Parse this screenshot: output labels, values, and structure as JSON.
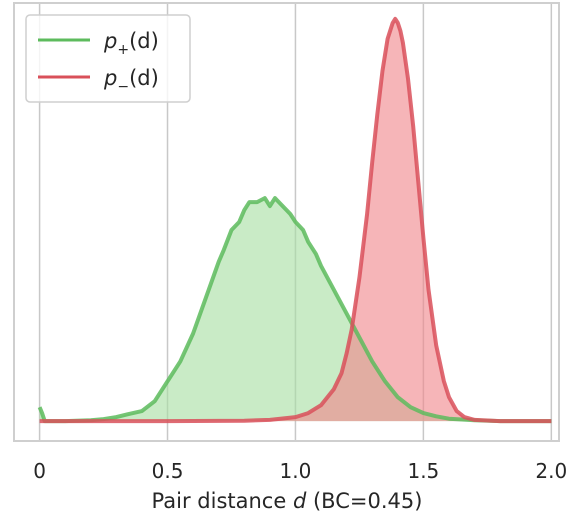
{
  "chart_data": {
    "type": "area",
    "xlim": [
      -0.1,
      2.03
    ],
    "ylim": [
      -0.05,
      1.05
    ],
    "xticks": [
      0,
      0.5,
      1.0,
      1.5,
      2.0
    ],
    "xtick_labels": [
      "0",
      "0.5",
      "1.0",
      "1.5",
      "2.0"
    ],
    "xlabel": "Pair distance",
    "xlabel_var": "d",
    "xlabel_suffix": " (BC=0.45)",
    "grid": "vertical",
    "legend_position": "top-left",
    "series": [
      {
        "name": "p+(d)",
        "label_base": "p",
        "label_sub": "+",
        "label_arg": "(d)",
        "line_color": "#5dbb5d",
        "fill_color": "#a8dfa3",
        "x": [
          0.0,
          0.01,
          0.02,
          0.1,
          0.2,
          0.25,
          0.3,
          0.35,
          0.4,
          0.45,
          0.5,
          0.55,
          0.6,
          0.65,
          0.7,
          0.72,
          0.75,
          0.78,
          0.8,
          0.82,
          0.85,
          0.88,
          0.9,
          0.92,
          0.95,
          0.98,
          1.0,
          1.03,
          1.05,
          1.08,
          1.1,
          1.15,
          1.2,
          1.25,
          1.3,
          1.35,
          1.4,
          1.45,
          1.5,
          1.55,
          1.6,
          1.7,
          1.8,
          1.9,
          2.0
        ],
        "y": [
          0.035,
          0.02,
          0.0,
          0.0,
          0.002,
          0.005,
          0.01,
          0.018,
          0.025,
          0.05,
          0.1,
          0.15,
          0.22,
          0.31,
          0.4,
          0.43,
          0.48,
          0.5,
          0.53,
          0.55,
          0.55,
          0.56,
          0.54,
          0.56,
          0.54,
          0.52,
          0.5,
          0.48,
          0.45,
          0.42,
          0.39,
          0.33,
          0.27,
          0.21,
          0.15,
          0.1,
          0.06,
          0.035,
          0.02,
          0.012,
          0.006,
          0.002,
          0.0,
          0.0,
          0.0
        ]
      },
      {
        "name": "p−(d)",
        "label_base": "p",
        "label_sub": "−",
        "label_arg": "(d)",
        "line_color": "#d9505a",
        "fill_color": "#f0888c",
        "x": [
          0.0,
          0.5,
          0.8,
          0.9,
          1.0,
          1.05,
          1.1,
          1.15,
          1.18,
          1.2,
          1.22,
          1.25,
          1.28,
          1.3,
          1.32,
          1.34,
          1.36,
          1.38,
          1.39,
          1.4,
          1.41,
          1.42,
          1.44,
          1.46,
          1.48,
          1.5,
          1.52,
          1.55,
          1.58,
          1.6,
          1.63,
          1.66,
          1.7,
          1.8,
          2.0
        ],
        "y": [
          0.0,
          0.0,
          0.001,
          0.003,
          0.01,
          0.02,
          0.04,
          0.08,
          0.12,
          0.17,
          0.23,
          0.36,
          0.52,
          0.65,
          0.77,
          0.88,
          0.96,
          1.0,
          1.01,
          1.0,
          0.98,
          0.95,
          0.86,
          0.74,
          0.6,
          0.46,
          0.33,
          0.19,
          0.1,
          0.06,
          0.025,
          0.01,
          0.003,
          0.0,
          0.0
        ]
      }
    ]
  }
}
